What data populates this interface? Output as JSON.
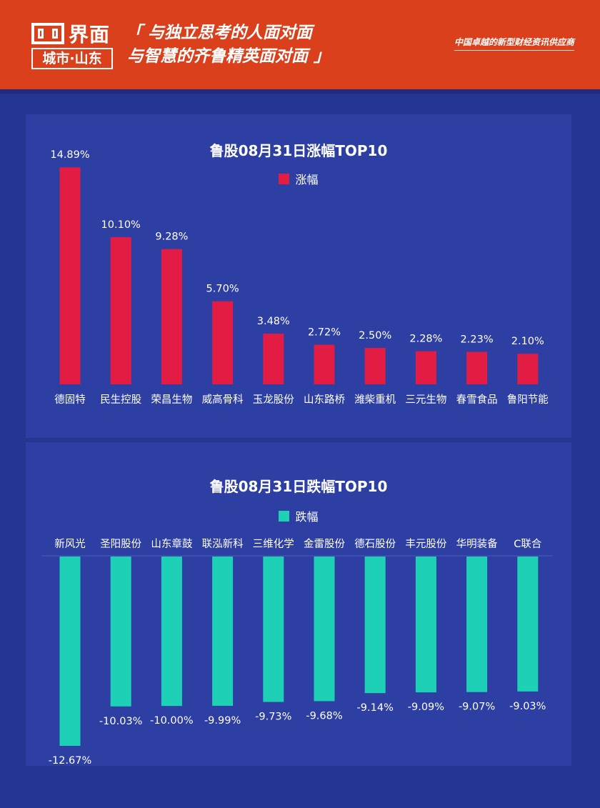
{
  "header": {
    "logo_text": "界面",
    "logo_sub": "城市·山东",
    "slogan_line1": "「 与独立思考的人面对面",
    "slogan_line2": "与智慧的齐鲁精英面对面 」",
    "tagline": "中国卓越的新型财经资讯供应商"
  },
  "colors": {
    "rise": "#e21c42",
    "fall": "#1ed1b6",
    "panel": "#2d3fa3",
    "background": "#243592",
    "header": "#d9401b"
  },
  "chart_data": [
    {
      "type": "bar",
      "title": "鲁股08月31日涨幅TOP10",
      "legend": "涨幅",
      "categories": [
        "德固特",
        "民生控股",
        "荣昌生物",
        "威高骨科",
        "玉龙股份",
        "山东路桥",
        "潍柴重机",
        "三元生物",
        "春雪食品",
        "鲁阳节能"
      ],
      "values": [
        14.89,
        10.1,
        9.28,
        5.7,
        3.48,
        2.72,
        2.5,
        2.28,
        2.23,
        2.1
      ],
      "labels": [
        "14.89%",
        "10.10%",
        "9.28%",
        "5.70%",
        "3.48%",
        "2.72%",
        "2.50%",
        "2.28%",
        "2.23%",
        "2.10%"
      ],
      "ylim": [
        0,
        15
      ]
    },
    {
      "type": "bar",
      "title": "鲁股08月31日跌幅TOP10",
      "legend": "跌幅",
      "categories": [
        "新风光",
        "圣阳股份",
        "山东章鼓",
        "联泓新科",
        "三维化学",
        "金雷股份",
        "德石股份",
        "丰元股份",
        "华明装备",
        "C联合"
      ],
      "values": [
        -12.67,
        -10.03,
        -10.0,
        -9.99,
        -9.73,
        -9.68,
        -9.14,
        -9.09,
        -9.07,
        -9.03
      ],
      "labels": [
        "-12.67%",
        "-10.03%",
        "-10.00%",
        "-9.99%",
        "-9.73%",
        "-9.68%",
        "-9.14%",
        "-9.09%",
        "-9.07%",
        "-9.03%"
      ],
      "ylim": [
        -12.67,
        0
      ]
    }
  ]
}
